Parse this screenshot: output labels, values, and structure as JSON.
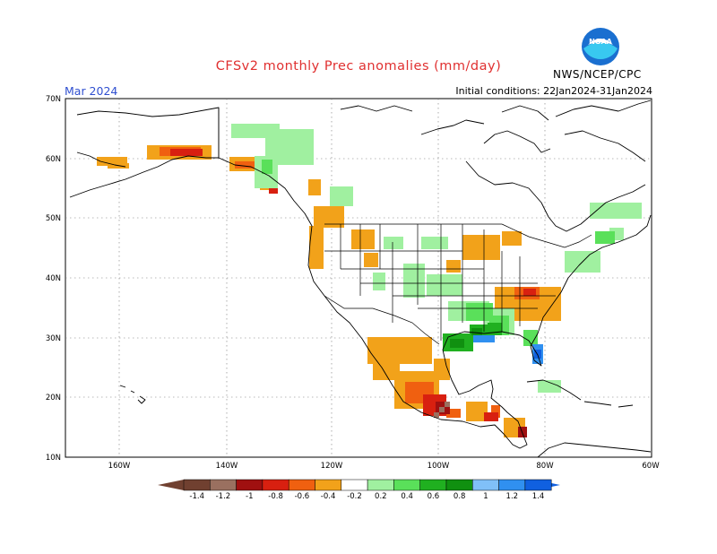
{
  "header": {
    "title": "CFSv2 monthly Prec anomalies (mm/day)",
    "month": "Mar 2024",
    "initial_conditions": "Initial conditions: 22Jan2024-31Jan2024",
    "agency": "NWS/NCEP/CPC",
    "logo_text": "NOAA"
  },
  "colors": {
    "title": "#e03030",
    "month": "#3050d0",
    "dry_1": "#f2a21a",
    "dry_2": "#f06010",
    "dry_3": "#d82010",
    "dry_4": "#a01010",
    "dry_5": "#9a7060",
    "dry_6": "#704030",
    "wet_1": "#a0f0a0",
    "wet_2": "#5ae05a",
    "wet_3": "#20b020",
    "wet_4": "#109010",
    "wet_5": "#80c0f8",
    "wet_6": "#3090f0",
    "wet_7": "#1060e0"
  },
  "map": {
    "lat_labels": [
      "70N",
      "60N",
      "50N",
      "40N",
      "30N",
      "20N",
      "10N"
    ],
    "lon_labels": [
      "160W",
      "140W",
      "120W",
      "100W",
      "80W",
      "60W"
    ]
  },
  "legend": {
    "labels": [
      "-1.4",
      "-1.2",
      "-1",
      "-0.8",
      "-0.6",
      "-0.4",
      "-0.2",
      "0.2",
      "0.4",
      "0.6",
      "0.8",
      "1",
      "1.2",
      "1.4"
    ],
    "colors": [
      "#704030",
      "#9a7060",
      "#a01010",
      "#d82010",
      "#f06010",
      "#f2a21a",
      "#ffffff",
      "#a0f0a0",
      "#5ae05a",
      "#20b020",
      "#109010",
      "#80c0f8",
      "#3090f0",
      "#1060e0"
    ]
  }
}
